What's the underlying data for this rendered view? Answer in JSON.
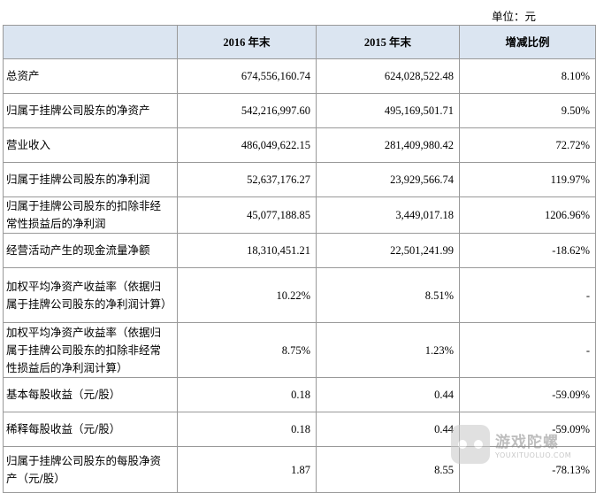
{
  "unit_label": "单位：元",
  "headers": [
    "",
    "2016 年末",
    "2015 年末",
    "增减比例"
  ],
  "rows": [
    {
      "label": "总资产",
      "v2016": "674,556,160.74",
      "v2015": "624,028,522.48",
      "change": "8.10%"
    },
    {
      "label": "归属于挂牌公司股东的净资产",
      "v2016": "542,216,997.60",
      "v2015": "495,169,501.71",
      "change": "9.50%"
    },
    {
      "label": "营业收入",
      "v2016": "486,049,622.15",
      "v2015": "281,409,980.42",
      "change": "72.72%"
    },
    {
      "label": "归属于挂牌公司股东的净利润",
      "v2016": "52,637,176.27",
      "v2015": "23,929,566.74",
      "change": "119.97%"
    },
    {
      "label": "归属于挂牌公司股东的扣除非经常性损益后的净利润",
      "v2016": "45,077,188.85",
      "v2015": "3,449,017.18",
      "change": "1206.96%"
    },
    {
      "label": "经营活动产生的现金流量净额",
      "v2016": "18,310,451.21",
      "v2015": "22,501,241.99",
      "change": "-18.62%"
    },
    {
      "label": "加权平均净资产收益率（依据归属于挂牌公司股东的净利润计算）",
      "v2016": "10.22%",
      "v2015": "8.51%",
      "change": "-"
    },
    {
      "label": "加权平均净资产收益率（依据归属于挂牌公司股东的扣除非经常性损益后的净利润计算）",
      "v2016": "8.75%",
      "v2015": "1.23%",
      "change": "-"
    },
    {
      "label": "基本每股收益（元/股）",
      "v2016": "0.18",
      "v2015": "0.44",
      "change": "-59.09%"
    },
    {
      "label": "稀释每股收益（元/股）",
      "v2016": "0.18",
      "v2015": "0.44",
      "change": "-59.09%"
    },
    {
      "label": "归属于挂牌公司股东的每股净资产（元/股）",
      "v2016": "1.87",
      "v2015": "8.55",
      "change": "-78.13%"
    }
  ],
  "watermark": {
    "cn": "游戏陀螺",
    "en": "YOUXITUOLUO.COM"
  }
}
